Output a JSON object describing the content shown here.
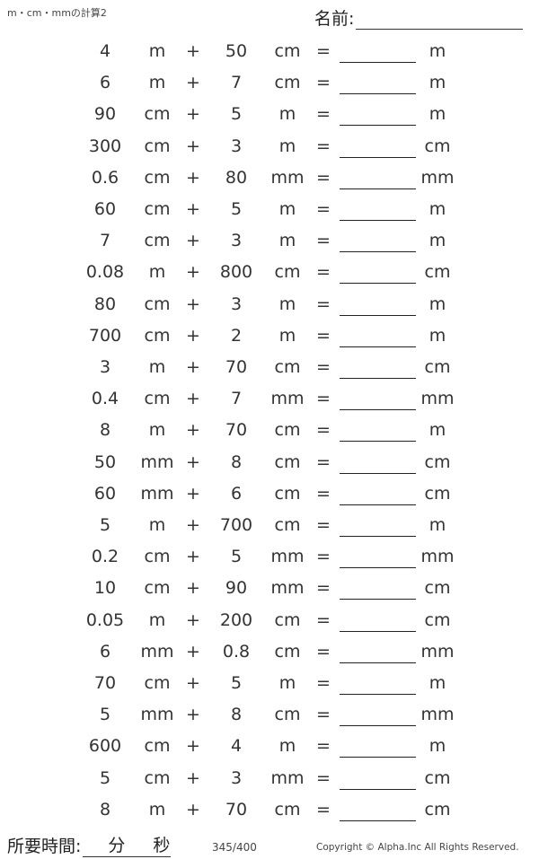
{
  "header": {
    "title": "m・cm・mmの計算2",
    "name_label": "名前:"
  },
  "operator": "+",
  "equals": "=",
  "problems": [
    {
      "a": "4",
      "ua": "m",
      "b": "50",
      "ub": "cm",
      "ans_unit": "m"
    },
    {
      "a": "6",
      "ua": "m",
      "b": "7",
      "ub": "cm",
      "ans_unit": "m"
    },
    {
      "a": "90",
      "ua": "cm",
      "b": "5",
      "ub": "m",
      "ans_unit": "m"
    },
    {
      "a": "300",
      "ua": "cm",
      "b": "3",
      "ub": "m",
      "ans_unit": "cm"
    },
    {
      "a": "0.6",
      "ua": "cm",
      "b": "80",
      "ub": "mm",
      "ans_unit": "mm"
    },
    {
      "a": "60",
      "ua": "cm",
      "b": "5",
      "ub": "m",
      "ans_unit": "m"
    },
    {
      "a": "7",
      "ua": "cm",
      "b": "3",
      "ub": "m",
      "ans_unit": "m"
    },
    {
      "a": "0.08",
      "ua": "m",
      "b": "800",
      "ub": "cm",
      "ans_unit": "cm"
    },
    {
      "a": "80",
      "ua": "cm",
      "b": "3",
      "ub": "m",
      "ans_unit": "m"
    },
    {
      "a": "700",
      "ua": "cm",
      "b": "2",
      "ub": "m",
      "ans_unit": "m"
    },
    {
      "a": "3",
      "ua": "m",
      "b": "70",
      "ub": "cm",
      "ans_unit": "cm"
    },
    {
      "a": "0.4",
      "ua": "cm",
      "b": "7",
      "ub": "mm",
      "ans_unit": "mm"
    },
    {
      "a": "8",
      "ua": "m",
      "b": "70",
      "ub": "cm",
      "ans_unit": "m"
    },
    {
      "a": "50",
      "ua": "mm",
      "b": "8",
      "ub": "cm",
      "ans_unit": "cm"
    },
    {
      "a": "60",
      "ua": "mm",
      "b": "6",
      "ub": "cm",
      "ans_unit": "cm"
    },
    {
      "a": "5",
      "ua": "m",
      "b": "700",
      "ub": "cm",
      "ans_unit": "m"
    },
    {
      "a": "0.2",
      "ua": "cm",
      "b": "5",
      "ub": "mm",
      "ans_unit": "mm"
    },
    {
      "a": "10",
      "ua": "cm",
      "b": "90",
      "ub": "mm",
      "ans_unit": "cm"
    },
    {
      "a": "0.05",
      "ua": "m",
      "b": "200",
      "ub": "cm",
      "ans_unit": "cm"
    },
    {
      "a": "6",
      "ua": "mm",
      "b": "0.8",
      "ub": "cm",
      "ans_unit": "mm"
    },
    {
      "a": "70",
      "ua": "cm",
      "b": "5",
      "ub": "m",
      "ans_unit": "m"
    },
    {
      "a": "5",
      "ua": "mm",
      "b": "8",
      "ub": "cm",
      "ans_unit": "mm"
    },
    {
      "a": "600",
      "ua": "cm",
      "b": "4",
      "ub": "m",
      "ans_unit": "m"
    },
    {
      "a": "5",
      "ua": "cm",
      "b": "3",
      "ub": "mm",
      "ans_unit": "cm"
    },
    {
      "a": "8",
      "ua": "m",
      "b": "70",
      "ub": "cm",
      "ans_unit": "cm"
    }
  ],
  "footer": {
    "time_label": "所要時間:",
    "minutes": "分",
    "seconds": "秒",
    "page": "345/400",
    "copyright": "Copyright © Alpha.Inc All Rights Reserved."
  }
}
